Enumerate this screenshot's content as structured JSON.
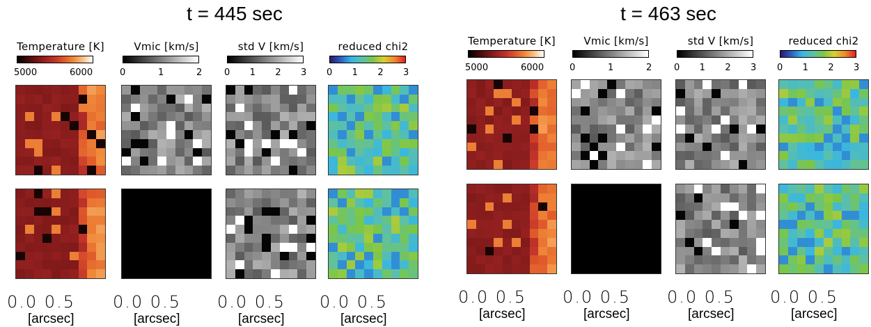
{
  "panels": [
    {
      "title": "t = 445 sec",
      "columns": [
        {
          "label": "Temperature [K]",
          "ticks": [
            "5000",
            "6000"
          ],
          "cmap": "temperature"
        },
        {
          "label": "Vmic [km/s]",
          "ticks": [
            "0",
            "1",
            "2"
          ],
          "cmap": "gray"
        },
        {
          "label": "std V [km/s]",
          "ticks": [
            "0",
            "1",
            "2",
            "3"
          ],
          "cmap": "gray"
        },
        {
          "label": "reduced chi2",
          "ticks": [
            "0",
            "1",
            "2",
            "3"
          ],
          "cmap": "rainbow"
        }
      ],
      "axis": {
        "ticks": "0.0  0.5",
        "unit": "[arcsec]"
      }
    },
    {
      "title": "t = 463 sec",
      "columns": [
        {
          "label": "Temperature [K]",
          "ticks": [
            "5000",
            "6000"
          ],
          "cmap": "temperature"
        },
        {
          "label": "Vmic [km/s]",
          "ticks": [
            "0",
            "1",
            "2"
          ],
          "cmap": "gray"
        },
        {
          "label": "std V [km/s]",
          "ticks": [
            "0",
            "1",
            "2",
            "3"
          ],
          "cmap": "gray"
        },
        {
          "label": "reduced chi2",
          "ticks": [
            "0",
            "1",
            "2",
            "3"
          ],
          "cmap": "rainbow"
        }
      ],
      "axis": {
        "ticks": "0.0  0.5",
        "unit": "[arcsec]"
      }
    }
  ],
  "colors": {
    "temperature": [
      "#000000",
      "#3a0a0a",
      "#6e1414",
      "#9a2222",
      "#c2332a",
      "#e05a2a",
      "#f08a3a",
      "#fbc28a",
      "#ffffff"
    ],
    "gray": [
      "#000000",
      "#ffffff"
    ],
    "rainbow": [
      "#2a1a6e",
      "#2b5fc0",
      "#36b6e6",
      "#5cc0a8",
      "#7ac64a",
      "#d8d030",
      "#f08a2a",
      "#e02020"
    ]
  },
  "chart_data": [
    {
      "type": "heatmap",
      "title": "t = 445 sec",
      "series": [
        {
          "name": "Temperature [K]",
          "range": [
            5000,
            6000
          ],
          "rows": 2
        },
        {
          "name": "Vmic [km/s]",
          "range": [
            0,
            2
          ],
          "rows": 2
        },
        {
          "name": "std V [km/s]",
          "range": [
            0,
            3
          ],
          "rows": 2
        },
        {
          "name": "reduced chi2",
          "range": [
            0,
            3
          ],
          "rows": 2
        }
      ],
      "xlabel": "[arcsec]",
      "xticks": [
        "0.0",
        "0.5"
      ]
    },
    {
      "type": "heatmap",
      "title": "t = 463 sec",
      "series": [
        {
          "name": "Temperature [K]",
          "range": [
            5000,
            6000
          ],
          "rows": 2
        },
        {
          "name": "Vmic [km/s]",
          "range": [
            0,
            2
          ],
          "rows": 2
        },
        {
          "name": "std V [km/s]",
          "range": [
            0,
            3
          ],
          "rows": 2
        },
        {
          "name": "reduced chi2",
          "range": [
            0,
            3
          ],
          "rows": 2
        }
      ],
      "xlabel": "[arcsec]",
      "xticks": [
        "0.0",
        "0.5"
      ]
    }
  ]
}
